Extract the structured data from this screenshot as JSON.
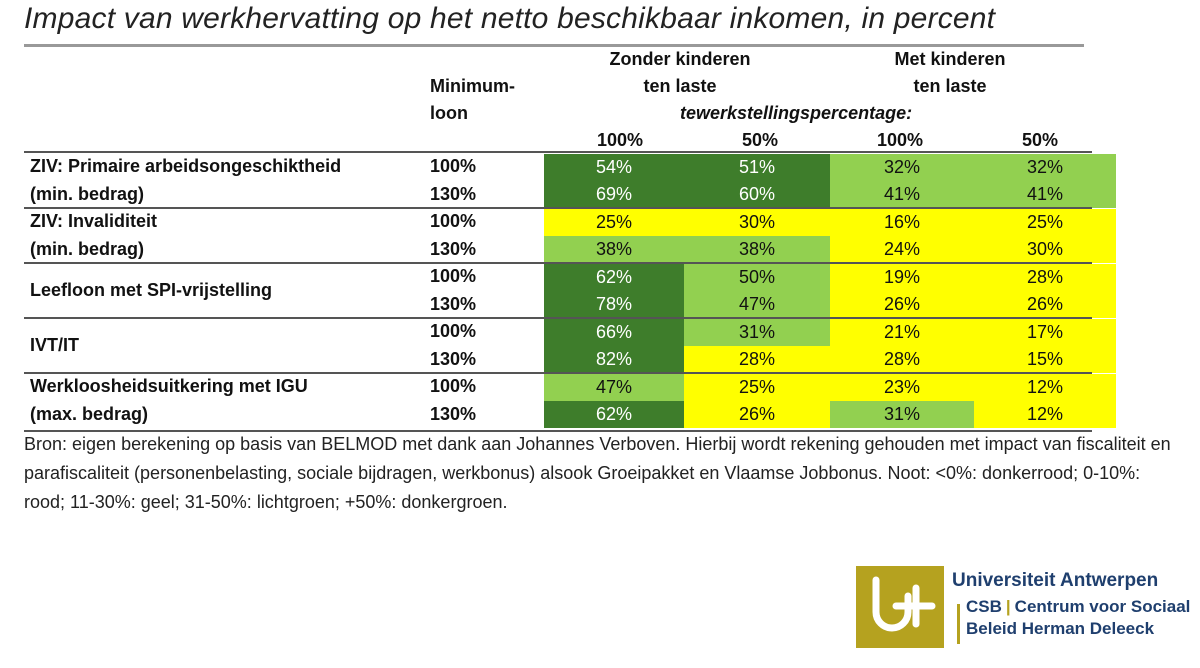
{
  "title": "Impact van werkhervatting op het netto beschikbaar inkomen, in percent",
  "chart_data": {
    "type": "table",
    "title": "Impact van werkhervatting op het netto beschikbaar inkomen, in percent",
    "header": {
      "minimum_wage_line1": "Minimum-",
      "minimum_wage_line2": "loon",
      "group_without_children_line1": "Zonder kinderen",
      "group_without_children_line2": "ten laste",
      "group_with_children_line1": "Met kinderen",
      "group_with_children_line2": "ten laste",
      "subtitle": "tewerkstellingspercentage:",
      "columns": [
        "100%",
        "50%",
        "100%",
        "50%"
      ]
    },
    "groups": [
      {
        "label_line1": "ZIV:  Primaire arbeidsongeschiktheid",
        "label_line2": "(min. bedrag)",
        "rows": [
          {
            "min_wage": "100%",
            "values": [
              "54%",
              "51%",
              "32%",
              "32%"
            ],
            "colors": [
              "dg",
              "dg",
              "lg",
              "lg"
            ]
          },
          {
            "min_wage": "130%",
            "values": [
              "69%",
              "60%",
              "41%",
              "41%"
            ],
            "colors": [
              "dg",
              "dg",
              "lg",
              "lg"
            ]
          }
        ]
      },
      {
        "label_line1": "ZIV: Invaliditeit",
        "label_line2": "(min. bedrag)",
        "rows": [
          {
            "min_wage": "100%",
            "values": [
              "25%",
              "30%",
              "16%",
              "25%"
            ],
            "colors": [
              "ye",
              "ye",
              "ye",
              "ye"
            ]
          },
          {
            "min_wage": "130%",
            "values": [
              "38%",
              "38%",
              "24%",
              "30%"
            ],
            "colors": [
              "lg",
              "lg",
              "ye",
              "ye"
            ]
          }
        ]
      },
      {
        "label_line1": "Leefloon met SPI-vrijstelling",
        "label_line2": "",
        "rows": [
          {
            "min_wage": "100%",
            "values": [
              "62%",
              "50%",
              "19%",
              "28%"
            ],
            "colors": [
              "dg",
              "lg",
              "ye",
              "ye"
            ]
          },
          {
            "min_wage": "130%",
            "values": [
              "78%",
              "47%",
              "26%",
              "26%"
            ],
            "colors": [
              "dg",
              "lg",
              "ye",
              "ye"
            ]
          }
        ]
      },
      {
        "label_line1": "IVT/IT",
        "label_line2": "",
        "rows": [
          {
            "min_wage": "100%",
            "values": [
              "66%",
              "31%",
              "21%",
              "17%"
            ],
            "colors": [
              "dg",
              "lg",
              "ye",
              "ye"
            ]
          },
          {
            "min_wage": "130%",
            "values": [
              "82%",
              "28%",
              "28%",
              "15%"
            ],
            "colors": [
              "dg",
              "ye",
              "ye",
              "ye"
            ]
          }
        ]
      },
      {
        "label_line1": "Werkloosheidsuitkering met IGU",
        "label_line2": "(max. bedrag)",
        "rows": [
          {
            "min_wage": "100%",
            "values": [
              "47%",
              "25%",
              "23%",
              "12%"
            ],
            "colors": [
              "lg",
              "ye",
              "ye",
              "ye"
            ]
          },
          {
            "min_wage": "130%",
            "values": [
              "62%",
              "26%",
              "31%",
              "12%"
            ],
            "colors": [
              "dg",
              "ye",
              "lg",
              "ye"
            ]
          }
        ]
      }
    ],
    "color_legend": {
      "dg": "#3e7d2b",
      "lg": "#92d050",
      "ye": "#ffff00"
    }
  },
  "source_note": "Bron: eigen berekening op basis van BELMOD met dank aan Johannes Verboven. Hierbij wordt rekening gehouden met impact van fiscaliteit en parafiscaliteit (personenbelasting, sociale bijdragen, werkbonus) alsook Groeipakket en Vlaamse Jobbonus. Noot: <0%: donkerrood; 0-10%: rood; 11-30%: geel; 31-50%: lichtgroen; +50%: donkergroen.",
  "logo": {
    "university": "Universiteit Antwerpen",
    "abbr": "CSB",
    "separator": "|",
    "center_line1": "Centrum voor Sociaal",
    "center_line2": "Beleid Herman Deleeck",
    "brand_color": "#b5a21f",
    "text_color": "#1f3f6e"
  }
}
